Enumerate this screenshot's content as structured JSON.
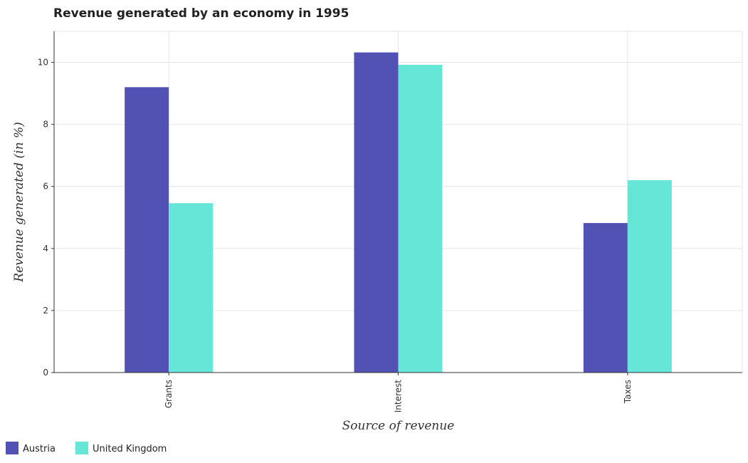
{
  "chart_data": {
    "type": "bar",
    "title": "Revenue generated by an economy in 1995",
    "xlabel": "Source of revenue",
    "ylabel": "Revenue generated (in %)",
    "categories": [
      "Grants",
      "Interest",
      "Taxes"
    ],
    "series": [
      {
        "name": "Austria",
        "color": "#5252b5",
        "values": [
          9.2,
          10.32,
          4.82
        ]
      },
      {
        "name": "United Kingdom",
        "color": "#66e6d6",
        "values": [
          5.46,
          9.92,
          6.2
        ]
      }
    ],
    "ylim": [
      0,
      11
    ],
    "yticks": [
      0,
      2,
      4,
      6,
      8,
      10
    ],
    "grid": true,
    "legend_position": "bottom-left"
  }
}
